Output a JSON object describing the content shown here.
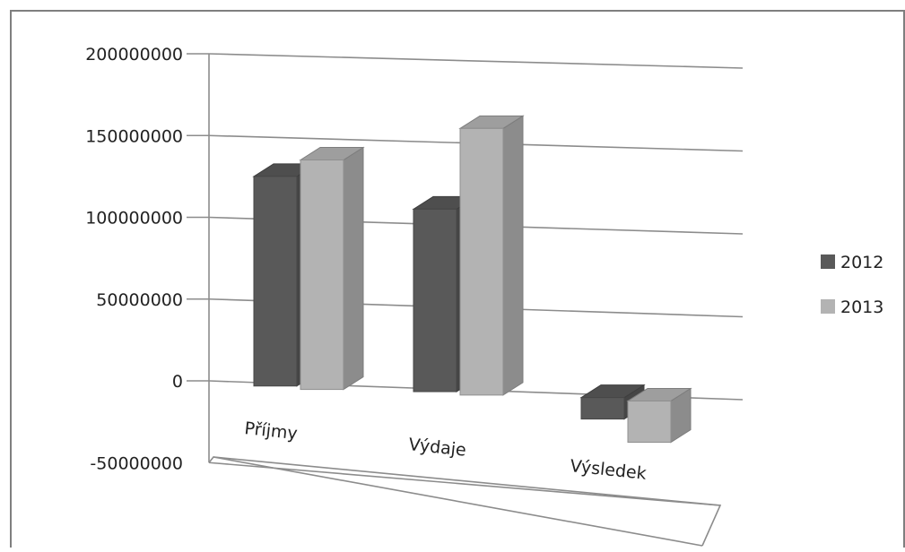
{
  "chart_data": {
    "type": "bar",
    "title": "",
    "xlabel": "",
    "ylabel": "",
    "categories": [
      "Příjmy",
      "Výdaje",
      "Výsledek"
    ],
    "series": [
      {
        "name": "2012",
        "values": [
          128000000,
          111000000,
          -13000000
        ],
        "color": "#595959"
      },
      {
        "name": "2013",
        "values": [
          140000000,
          162000000,
          -25000000
        ],
        "color": "#b3b3b3"
      }
    ],
    "ylim": [
      -50000000,
      200000000
    ],
    "yticks": [
      -50000000,
      0,
      50000000,
      100000000,
      150000000,
      200000000
    ],
    "ytick_labels": [
      "-50000000",
      "0",
      "50000000",
      "100000000",
      "150000000",
      "200000000"
    ],
    "grid": true,
    "legend": "right",
    "style": "3d-clustered-column"
  }
}
